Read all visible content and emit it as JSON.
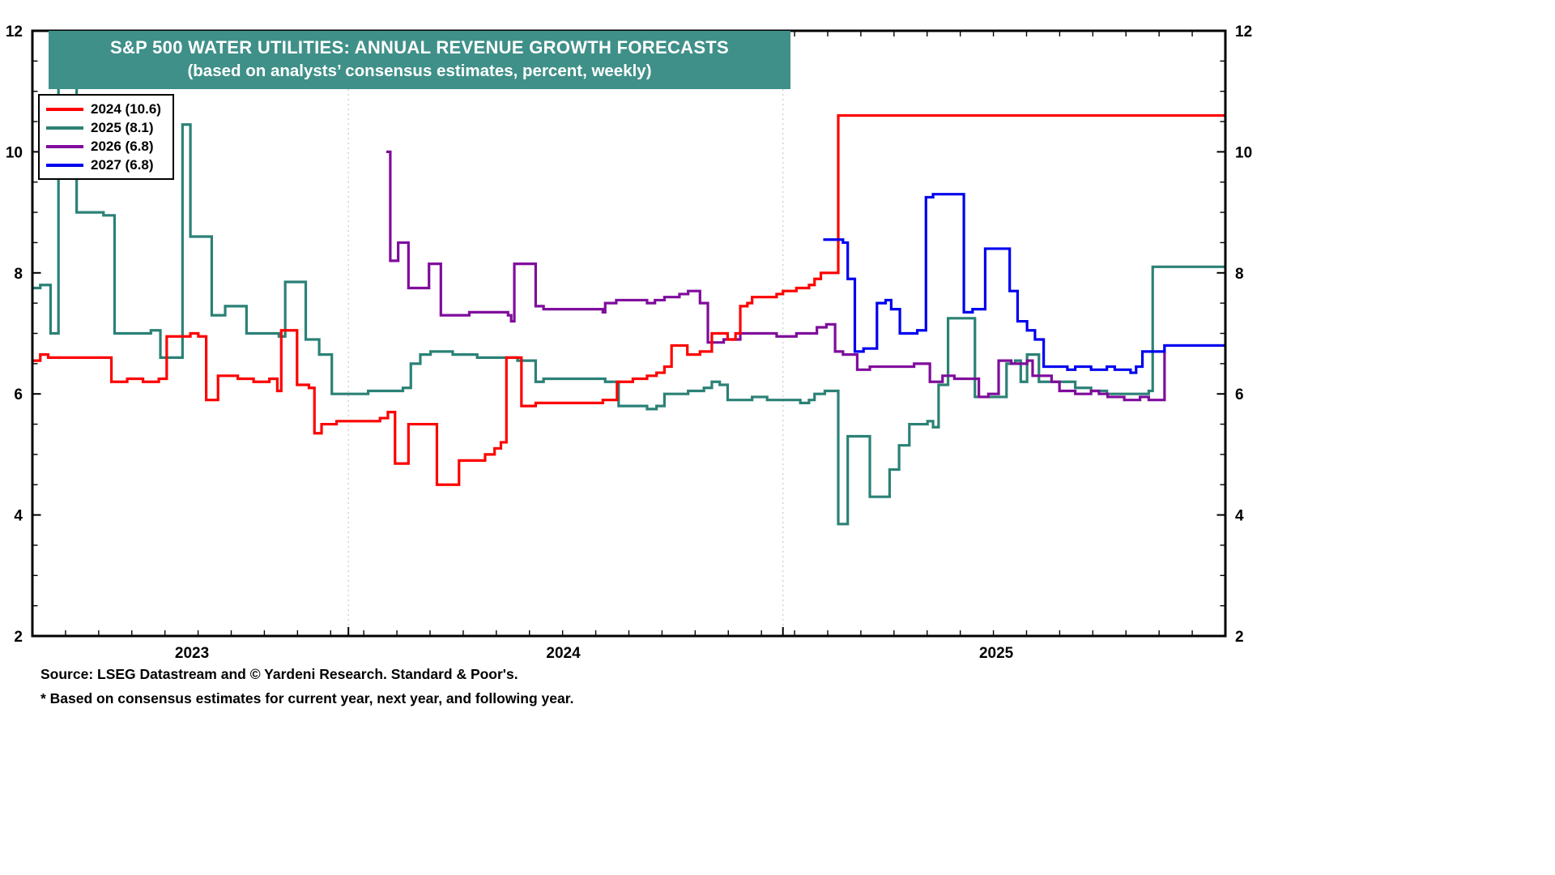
{
  "chart_data": {
    "type": "line",
    "step": true,
    "title": "S&P 500 WATER UTILITIES: ANNUAL REVENUE GROWTH FORECASTS",
    "subtitle": "(based on analysts’ consensus estimates, percent, weekly)",
    "unit": "percent",
    "frequency": "weekly",
    "ylim": [
      2,
      12
    ],
    "yticks": [
      2,
      4,
      6,
      8,
      10,
      12
    ],
    "y_minor_step": 0.5,
    "x_range_weeks": [
      0,
      151
    ],
    "x_year_labels": [
      {
        "label": "2023",
        "week": 20.2
      },
      {
        "label": "2024",
        "week": 67.2
      },
      {
        "label": "2025",
        "week": 122
      }
    ],
    "x_year_gridlines_weeks": [
      40,
      95
    ],
    "legend_position": "top-left",
    "series": [
      {
        "name": "2024",
        "label": "2024 (10.6)",
        "final_value": 10.6,
        "color": "#FF0000",
        "points": [
          [
            0,
            6.55
          ],
          [
            1,
            6.65
          ],
          [
            2,
            6.6
          ],
          [
            10,
            6.2
          ],
          [
            12,
            6.25
          ],
          [
            14,
            6.2
          ],
          [
            16,
            6.25
          ],
          [
            17,
            6.95
          ],
          [
            20,
            7.0
          ],
          [
            21,
            6.95
          ],
          [
            22,
            5.9
          ],
          [
            23.5,
            6.3
          ],
          [
            26,
            6.25
          ],
          [
            28,
            6.2
          ],
          [
            30,
            6.25
          ],
          [
            31,
            6.05
          ],
          [
            31.5,
            7.05
          ],
          [
            33.5,
            6.15
          ],
          [
            35,
            6.1
          ],
          [
            35.7,
            5.35
          ],
          [
            36.6,
            5.5
          ],
          [
            38.5,
            5.55
          ],
          [
            44,
            5.6
          ],
          [
            45,
            5.7
          ],
          [
            45.9,
            4.85
          ],
          [
            47.6,
            5.5
          ],
          [
            51.2,
            4.5
          ],
          [
            54,
            4.9
          ],
          [
            57.3,
            5.0
          ],
          [
            58.5,
            5.1
          ],
          [
            59.3,
            5.2
          ],
          [
            60,
            6.6
          ],
          [
            61.9,
            5.8
          ],
          [
            63.7,
            5.85
          ],
          [
            72.2,
            5.9
          ],
          [
            74,
            6.2
          ],
          [
            76,
            6.25
          ],
          [
            77.8,
            6.3
          ],
          [
            79,
            6.35
          ],
          [
            80,
            6.45
          ],
          [
            80.9,
            6.8
          ],
          [
            82.9,
            6.65
          ],
          [
            84.5,
            6.7
          ],
          [
            86,
            7.0
          ],
          [
            88,
            6.9
          ],
          [
            89,
            7.0
          ],
          [
            89.6,
            7.45
          ],
          [
            90.5,
            7.5
          ],
          [
            91.1,
            7.6
          ],
          [
            94.2,
            7.65
          ],
          [
            95,
            7.7
          ],
          [
            96.7,
            7.75
          ],
          [
            98.3,
            7.8
          ],
          [
            99,
            7.9
          ],
          [
            99.8,
            8.0
          ],
          [
            102,
            10.6
          ],
          [
            151,
            10.6
          ]
        ]
      },
      {
        "name": "2025",
        "label": "2025 (8.1)",
        "final_value": 8.1,
        "color": "#2B8176",
        "points": [
          [
            0,
            7.75
          ],
          [
            1,
            7.8
          ],
          [
            2.3,
            7.0
          ],
          [
            3.3,
            11.9
          ],
          [
            5.6,
            9.0
          ],
          [
            9,
            8.95
          ],
          [
            10.4,
            7.0
          ],
          [
            15,
            7.05
          ],
          [
            16.2,
            6.6
          ],
          [
            19,
            10.45
          ],
          [
            20,
            8.6
          ],
          [
            22.7,
            7.3
          ],
          [
            24.4,
            7.45
          ],
          [
            27.1,
            7.0
          ],
          [
            31.2,
            6.95
          ],
          [
            32,
            7.85
          ],
          [
            34.6,
            6.9
          ],
          [
            36.3,
            6.65
          ],
          [
            37.9,
            6.0
          ],
          [
            42.5,
            6.05
          ],
          [
            46.9,
            6.1
          ],
          [
            47.9,
            6.5
          ],
          [
            49.1,
            6.65
          ],
          [
            50.4,
            6.7
          ],
          [
            53.2,
            6.65
          ],
          [
            56.3,
            6.6
          ],
          [
            61.4,
            6.55
          ],
          [
            63.7,
            6.2
          ],
          [
            64.7,
            6.25
          ],
          [
            72.5,
            6.2
          ],
          [
            74.2,
            5.8
          ],
          [
            77.8,
            5.75
          ],
          [
            79,
            5.8
          ],
          [
            80,
            6.0
          ],
          [
            83,
            6.05
          ],
          [
            85,
            6.1
          ],
          [
            86,
            6.2
          ],
          [
            87,
            6.15
          ],
          [
            88,
            5.9
          ],
          [
            91.1,
            5.95
          ],
          [
            93,
            5.9
          ],
          [
            97.2,
            5.85
          ],
          [
            98.3,
            5.9
          ],
          [
            99,
            6.0
          ],
          [
            100.3,
            6.05
          ],
          [
            102,
            3.85
          ],
          [
            103.2,
            5.3
          ],
          [
            106,
            4.3
          ],
          [
            108.5,
            4.75
          ],
          [
            109.7,
            5.15
          ],
          [
            111,
            5.5
          ],
          [
            113.3,
            5.55
          ],
          [
            114,
            5.45
          ],
          [
            114.7,
            6.15
          ],
          [
            115.9,
            7.25
          ],
          [
            119.3,
            5.95
          ],
          [
            123.3,
            6.5
          ],
          [
            124.4,
            6.55
          ],
          [
            125.1,
            6.2
          ],
          [
            125.9,
            6.65
          ],
          [
            127.4,
            6.2
          ],
          [
            132,
            6.1
          ],
          [
            134,
            6.05
          ],
          [
            136,
            6.0
          ],
          [
            141.3,
            6.05
          ],
          [
            141.8,
            8.1
          ],
          [
            151,
            8.1
          ]
        ]
      },
      {
        "name": "2026",
        "label": "2026 (6.8)",
        "final_value": 6.8,
        "color": "#7F0C9C",
        "points": [
          [
            44.8,
            10.0
          ],
          [
            45.3,
            8.2
          ],
          [
            46.3,
            8.5
          ],
          [
            47.6,
            7.75
          ],
          [
            50.2,
            8.15
          ],
          [
            51.7,
            7.3
          ],
          [
            55.3,
            7.35
          ],
          [
            60.2,
            7.3
          ],
          [
            60.6,
            7.2
          ],
          [
            61,
            8.15
          ],
          [
            63.7,
            7.45
          ],
          [
            64.7,
            7.4
          ],
          [
            72.2,
            7.35
          ],
          [
            72.5,
            7.5
          ],
          [
            73.9,
            7.55
          ],
          [
            77.8,
            7.5
          ],
          [
            78.8,
            7.55
          ],
          [
            80,
            7.6
          ],
          [
            81.9,
            7.65
          ],
          [
            83,
            7.7
          ],
          [
            84.5,
            7.5
          ],
          [
            85.5,
            6.85
          ],
          [
            87.5,
            6.9
          ],
          [
            89.6,
            7.0
          ],
          [
            94.2,
            6.95
          ],
          [
            96.7,
            7.0
          ],
          [
            99.3,
            7.1
          ],
          [
            100.5,
            7.15
          ],
          [
            101.6,
            6.7
          ],
          [
            102.6,
            6.65
          ],
          [
            104.4,
            6.4
          ],
          [
            106,
            6.45
          ],
          [
            111.6,
            6.5
          ],
          [
            113.6,
            6.2
          ],
          [
            115.2,
            6.3
          ],
          [
            116.7,
            6.25
          ],
          [
            119.8,
            5.95
          ],
          [
            121,
            6.0
          ],
          [
            122.3,
            6.55
          ],
          [
            123.9,
            6.5
          ],
          [
            125.9,
            6.55
          ],
          [
            126.6,
            6.3
          ],
          [
            129,
            6.2
          ],
          [
            130,
            6.05
          ],
          [
            132,
            6.0
          ],
          [
            134,
            6.05
          ],
          [
            135,
            6.0
          ],
          [
            136.1,
            5.95
          ],
          [
            138.2,
            5.9
          ],
          [
            140.2,
            5.95
          ],
          [
            141.3,
            5.9
          ],
          [
            143.3,
            6.8
          ],
          [
            151,
            6.8
          ]
        ]
      },
      {
        "name": "2027",
        "label": "2027 (6.8)",
        "final_value": 6.8,
        "color": "#0000F0",
        "points": [
          [
            100.1,
            8.55
          ],
          [
            102.6,
            8.5
          ],
          [
            103.2,
            7.9
          ],
          [
            104.1,
            6.7
          ],
          [
            105.2,
            6.75
          ],
          [
            106.9,
            7.5
          ],
          [
            108,
            7.55
          ],
          [
            108.7,
            7.4
          ],
          [
            109.8,
            7.0
          ],
          [
            112,
            7.05
          ],
          [
            113.1,
            9.25
          ],
          [
            114,
            9.3
          ],
          [
            117.9,
            7.35
          ],
          [
            119,
            7.4
          ],
          [
            120.6,
            8.4
          ],
          [
            123.7,
            7.7
          ],
          [
            124.7,
            7.2
          ],
          [
            125.9,
            7.05
          ],
          [
            126.9,
            6.9
          ],
          [
            128,
            6.45
          ],
          [
            131,
            6.4
          ],
          [
            132,
            6.45
          ],
          [
            134,
            6.4
          ],
          [
            136,
            6.45
          ],
          [
            137,
            6.4
          ],
          [
            139,
            6.35
          ],
          [
            139.7,
            6.45
          ],
          [
            140.5,
            6.7
          ],
          [
            143.3,
            6.8
          ],
          [
            151,
            6.8
          ]
        ]
      }
    ]
  },
  "banner": {
    "bg_color": "#3F9088"
  },
  "footer": {
    "source": "Source: LSEG Datastream and © Yardeni Research. Standard & Poor's.",
    "note": "* Based on consensus estimates for current year, next year, and following year."
  }
}
